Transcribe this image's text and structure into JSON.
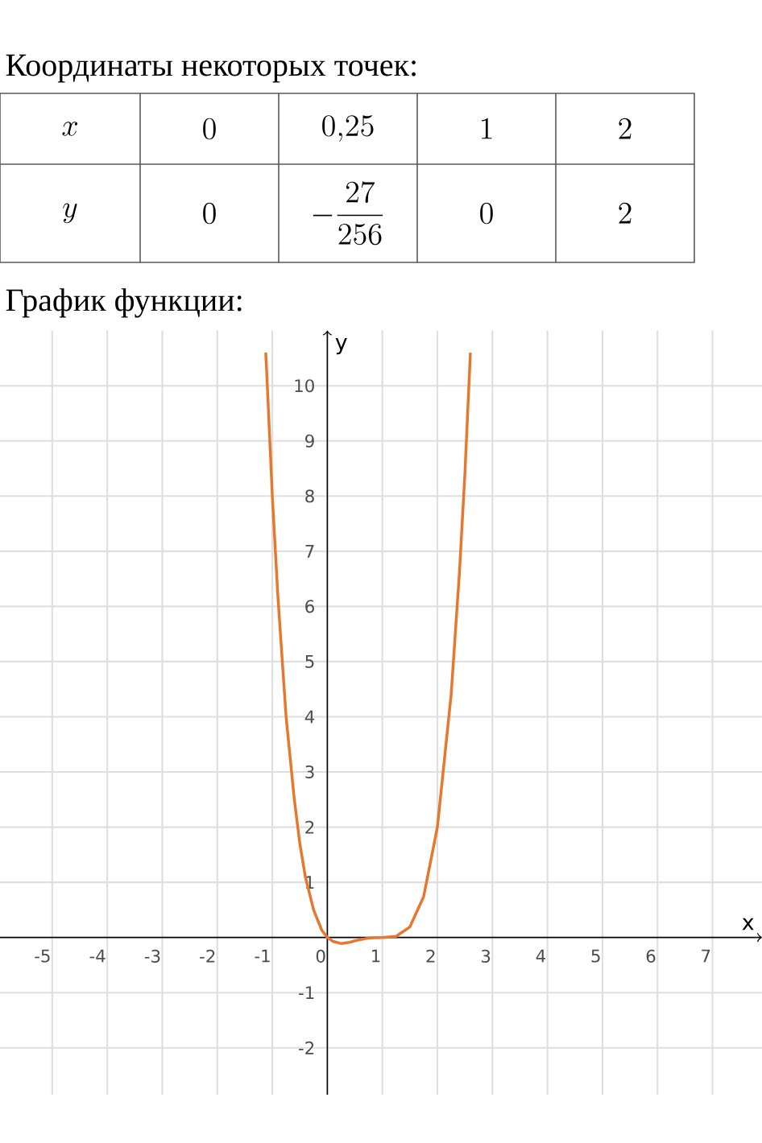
{
  "chart_data": {
    "type": "line",
    "annotations": [
      "Координаты некоторых точек:",
      "x",
      "0",
      "0{,}25",
      "1",
      "2",
      "y",
      "0",
      "-\\frac{27}{256}",
      "0",
      "2",
      "График функции:"
    ],
    "xlabel": "x",
    "ylabel": "y",
    "x": [
      -1.12,
      -1.1,
      -1.0,
      -0.9,
      -0.75,
      -0.6,
      -0.5,
      -0.4,
      -0.25,
      -0.1,
      0,
      0.1,
      0.25,
      0.4,
      0.5,
      0.75,
      1.0,
      1.25,
      1.5,
      1.75,
      2.0,
      2.25,
      2.4,
      2.5,
      2.6
    ],
    "series": [
      {
        "color": "#e8772e",
        "values": [
          10.6,
          10.2,
          8.0,
          6.2,
          4.0,
          2.5,
          1.7,
          1.1,
          0.5,
          0.13,
          0,
          -0.07,
          -0.11,
          -0.09,
          -0.06,
          -0.01,
          0,
          0.02,
          0.19,
          0.74,
          2.0,
          4.4,
          6.6,
          8.4,
          10.6
        ]
      }
    ],
    "xlim": [
      -5.95,
      7.9
    ],
    "ylim": [
      -2.85,
      11.0
    ],
    "xticks": [
      -5,
      -4,
      -3,
      -2,
      -1,
      0,
      1,
      2,
      3,
      4,
      5,
      6,
      7
    ],
    "yticks": [
      -2,
      -1,
      1,
      2,
      3,
      4,
      5,
      6,
      7,
      8,
      9,
      10
    ],
    "grid": true,
    "line_style": "solid",
    "marker": "none"
  }
}
